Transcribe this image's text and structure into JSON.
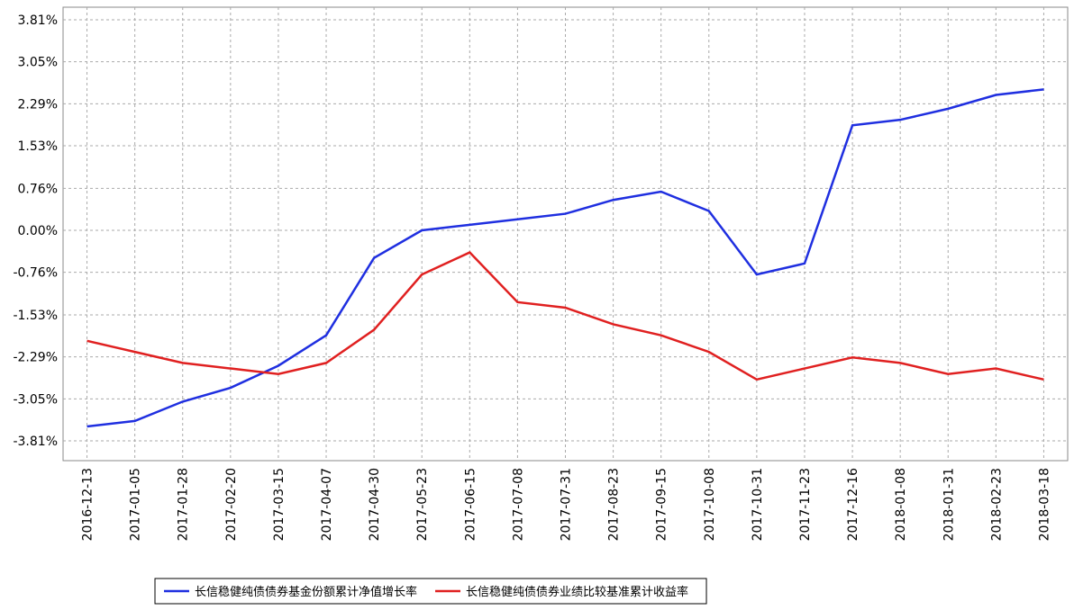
{
  "chart_data": {
    "type": "line",
    "categories": [
      "2016-12-13",
      "2017-01-05",
      "2017-01-28",
      "2017-02-20",
      "2017-03-15",
      "2017-04-07",
      "2017-04-30",
      "2017-05-23",
      "2017-06-15",
      "2017-07-08",
      "2017-07-31",
      "2017-08-23",
      "2017-09-15",
      "2017-10-08",
      "2017-10-31",
      "2017-11-23",
      "2017-12-16",
      "2018-01-08",
      "2018-01-31",
      "2018-02-23",
      "2018-03-18"
    ],
    "series": [
      {
        "name": "长信稳健纯债债券基金份额累计净值增长率",
        "color": "#1f2fe0",
        "values": [
          -3.55,
          -3.45,
          -3.1,
          -2.85,
          -2.45,
          -1.9,
          -0.5,
          0.0,
          0.1,
          0.2,
          0.3,
          0.55,
          0.7,
          0.35,
          -0.8,
          -0.6,
          1.9,
          2.0,
          2.2,
          2.45,
          2.55
        ]
      },
      {
        "name": "长信稳健纯债债券业绩比较基准累计收益率",
        "color": "#e02020",
        "values": [
          -2.0,
          -2.2,
          -2.4,
          -2.5,
          -2.6,
          -2.4,
          -1.8,
          -0.8,
          -0.4,
          -1.3,
          -1.4,
          -1.7,
          -1.9,
          -2.2,
          -2.7,
          -2.5,
          -2.3,
          -2.4,
          -2.6,
          -2.5,
          -2.7
        ]
      }
    ],
    "ylim": [
      -3.81,
      3.81
    ],
    "yticks": [
      {
        "value": 3.81,
        "label": "3.81%"
      },
      {
        "value": 3.05,
        "label": "3.05%"
      },
      {
        "value": 2.29,
        "label": "2.29%"
      },
      {
        "value": 1.53,
        "label": "1.53%"
      },
      {
        "value": 0.76,
        "label": "0.76%"
      },
      {
        "value": 0.0,
        "label": "0.00%"
      },
      {
        "value": -0.76,
        "label": "-0.76%"
      },
      {
        "value": -1.53,
        "label": "-1.53%"
      },
      {
        "value": -2.29,
        "label": "-2.29%"
      },
      {
        "value": -3.05,
        "label": "-3.05%"
      },
      {
        "value": -3.81,
        "label": "-3.81%"
      }
    ],
    "grid": true,
    "legend": "bottom"
  }
}
